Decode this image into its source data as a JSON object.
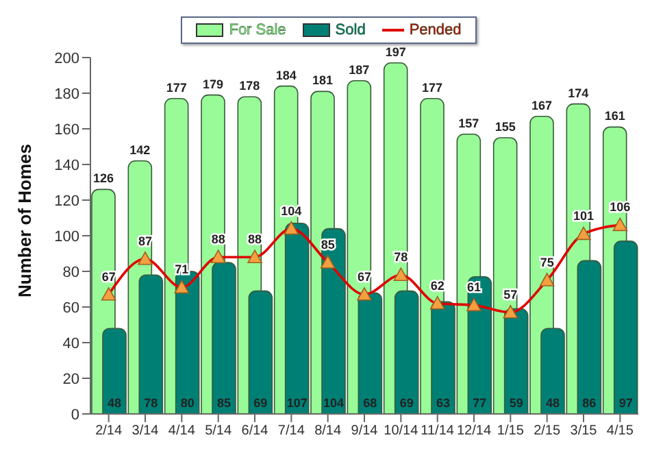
{
  "chart_data": {
    "type": "bar",
    "ylabel": "Number of Homes",
    "categories": [
      "2/14",
      "3/14",
      "4/14",
      "5/14",
      "6/14",
      "7/14",
      "8/14",
      "9/14",
      "10/14",
      "11/14",
      "12/14",
      "1/15",
      "2/15",
      "3/15",
      "4/15"
    ],
    "series": [
      {
        "name": "For Sale",
        "color": "#98fb98",
        "values": [
          126,
          142,
          177,
          179,
          178,
          184,
          181,
          187,
          197,
          177,
          157,
          155,
          167,
          174,
          161
        ]
      },
      {
        "name": "Sold",
        "color": "#008075",
        "values": [
          48,
          78,
          80,
          85,
          69,
          107,
          104,
          68,
          69,
          63,
          77,
          59,
          48,
          86,
          97
        ]
      },
      {
        "name": "Pended",
        "type": "line",
        "color": "#e00000",
        "marker": "triangle",
        "values": [
          67,
          87,
          71,
          88,
          88,
          104,
          85,
          67,
          78,
          62,
          61,
          57,
          75,
          101,
          106
        ]
      }
    ],
    "ylim": [
      0,
      200
    ],
    "yticks": [
      0,
      20,
      40,
      60,
      80,
      100,
      120,
      140,
      160,
      180,
      200
    ],
    "data_labels": true,
    "legend": "top",
    "grid": false
  }
}
